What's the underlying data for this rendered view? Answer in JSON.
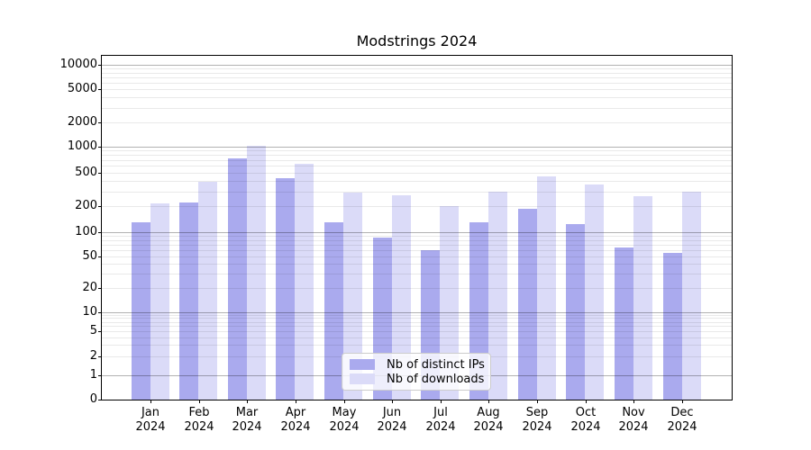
{
  "chart_data": {
    "type": "bar",
    "title": "Modstrings 2024",
    "months": [
      "Jan",
      "Feb",
      "Mar",
      "Apr",
      "May",
      "Jun",
      "Jul",
      "Aug",
      "Sep",
      "Oct",
      "Nov",
      "Dec"
    ],
    "year": "2024",
    "series": [
      {
        "name": "Nb of distinct IPs",
        "slug": "distinct-ips",
        "color": "#aaaaee",
        "values": [
          130,
          220,
          730,
          430,
          130,
          85,
          60,
          130,
          190,
          125,
          65,
          55
        ]
      },
      {
        "name": "Nb of downloads",
        "slug": "downloads",
        "color": "#dbdbf8",
        "values": [
          215,
          390,
          1020,
          630,
          290,
          270,
          200,
          300,
          450,
          360,
          265,
          300
        ]
      }
    ],
    "y_axis": {
      "scale": "symlog",
      "tick_values": [
        0,
        1,
        2,
        5,
        10,
        20,
        50,
        100,
        200,
        500,
        1000,
        2000,
        5000,
        10000
      ],
      "tick_labels": [
        "0",
        "1",
        "2",
        "5",
        "10",
        "20",
        "50",
        "100",
        "200",
        "500",
        "1000",
        "2000",
        "5000",
        "10000"
      ],
      "ylim": [
        0,
        12900
      ],
      "grid": "both"
    },
    "legend": {
      "position": "lower center",
      "entries": [
        "Nb of distinct IPs",
        "Nb of downloads"
      ]
    }
  }
}
